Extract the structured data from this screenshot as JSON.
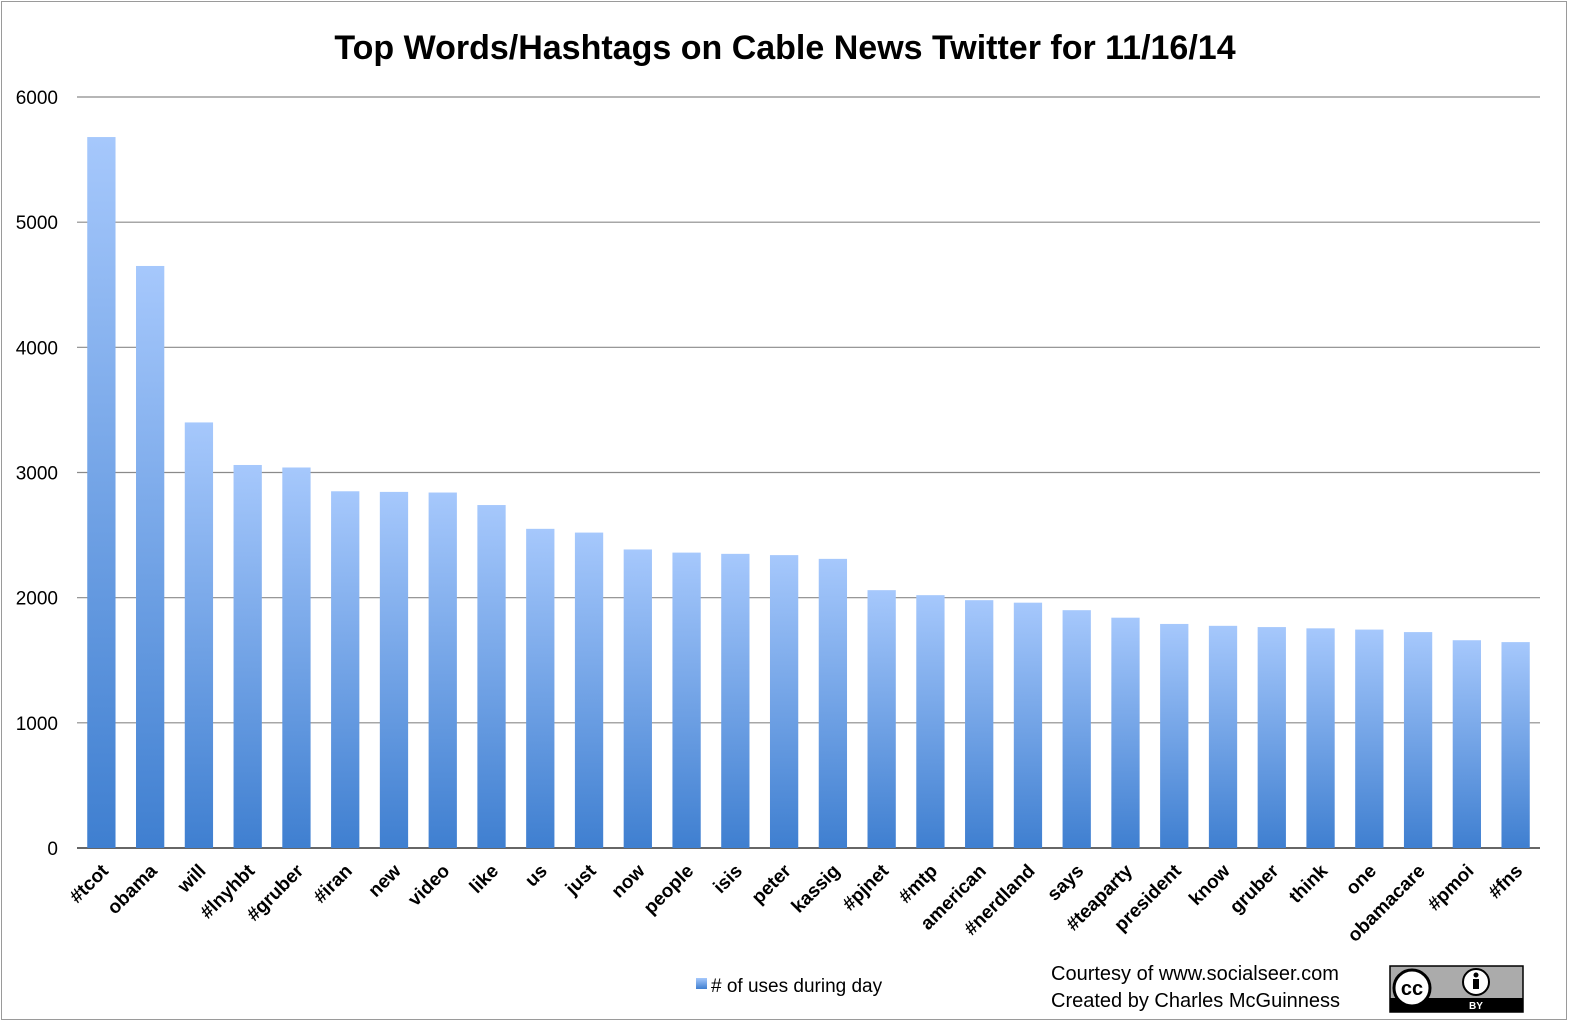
{
  "chart_data": {
    "type": "bar",
    "title": "Top Words/Hashtags on Cable News Twitter for 11/16/14",
    "xlabel": "",
    "ylabel": "",
    "ylim": [
      0,
      6000
    ],
    "yticks": [
      "0",
      "1000",
      "2000",
      "3000",
      "4000",
      "5000",
      "6000"
    ],
    "grid": true,
    "legend_position": "bottom",
    "categories": [
      "#tcot",
      "obama",
      "will",
      "#lnyhbt",
      "#gruber",
      "#iran",
      "new",
      "video",
      "like",
      "us",
      "just",
      "now",
      "people",
      "isis",
      "peter",
      "kassig",
      "#pjnet",
      "#mtp",
      "american",
      "#nerdland",
      "says",
      "#teaparty",
      "president",
      "know",
      "gruber",
      "think",
      "one",
      "obamacare",
      "#pmoi",
      "#fns"
    ],
    "series": [
      {
        "name": "# of uses during day",
        "color": "#5b92de",
        "values": [
          5680,
          4650,
          3400,
          3060,
          3040,
          2850,
          2845,
          2840,
          2740,
          2550,
          2520,
          2385,
          2360,
          2350,
          2340,
          2310,
          2060,
          2020,
          1980,
          1960,
          1900,
          1840,
          1790,
          1775,
          1765,
          1755,
          1745,
          1725,
          1660,
          1645
        ]
      }
    ]
  },
  "credits": {
    "line1": "Courtesy of www.socialseer.com",
    "line2": "Created by Charles McGuinness"
  },
  "license_badge": {
    "icon": "creative-commons-by-icon",
    "cc_text": "cc",
    "by_text": "BY"
  }
}
